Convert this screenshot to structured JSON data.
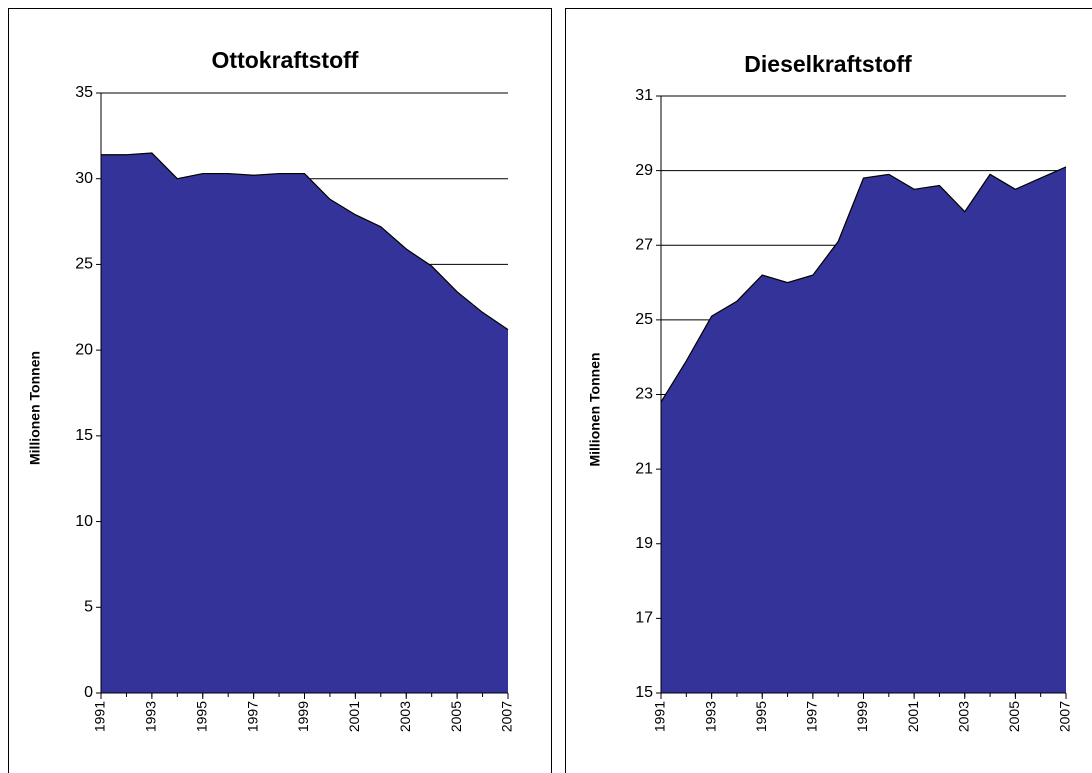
{
  "chart_data": [
    {
      "type": "area",
      "title": "Ottokraftstoff",
      "y_label": "Millionen Tonnen",
      "x": [
        1991,
        1992,
        1993,
        1994,
        1995,
        1996,
        1997,
        1998,
        1999,
        2000,
        2001,
        2002,
        2003,
        2004,
        2005,
        2006,
        2007
      ],
      "values": [
        31.4,
        31.4,
        31.5,
        30.0,
        30.3,
        30.3,
        30.2,
        30.3,
        30.3,
        28.8,
        27.9,
        27.2,
        25.9,
        24.9,
        23.4,
        22.2,
        21.2
      ],
      "color": "#333399",
      "xlim": [
        1991,
        2007
      ],
      "xticks": [
        1991,
        1993,
        1995,
        1997,
        1999,
        2001,
        2003,
        2005,
        2007
      ],
      "ylim": [
        0,
        35
      ],
      "yticks": [
        0,
        5,
        10,
        15,
        20,
        25,
        30,
        35
      ],
      "grid": true
    },
    {
      "type": "area",
      "title": "Dieselkraftstoff",
      "y_label": "Millionen Tonnen",
      "x": [
        1991,
        1992,
        1993,
        1994,
        1995,
        1996,
        1997,
        1998,
        1999,
        2000,
        2001,
        2002,
        2003,
        2004,
        2005,
        2006,
        2007
      ],
      "values": [
        22.8,
        23.9,
        25.1,
        25.5,
        26.2,
        26.0,
        26.2,
        27.1,
        28.8,
        28.9,
        28.5,
        28.6,
        27.9,
        28.9,
        28.5,
        28.8,
        29.1
      ],
      "color": "#333399",
      "xlim": [
        1991,
        2007
      ],
      "xticks": [
        1991,
        1993,
        1995,
        1997,
        1999,
        2001,
        2003,
        2005,
        2007
      ],
      "ylim": [
        15,
        31
      ],
      "yticks": [
        15,
        17,
        19,
        21,
        23,
        25,
        27,
        29,
        31
      ],
      "grid": true
    }
  ]
}
